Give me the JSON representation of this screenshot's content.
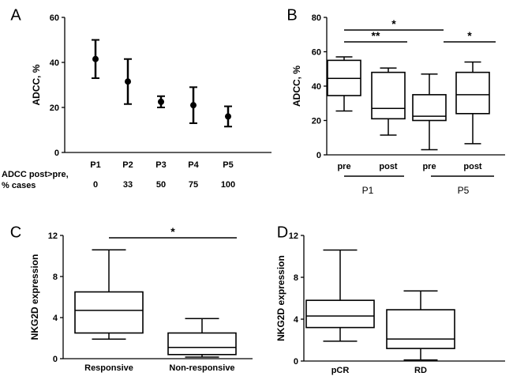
{
  "chart_data": [
    {
      "id": "A",
      "panel_label": "A",
      "type": "errorbar",
      "ylabel": "ADCC, %",
      "ylim": [
        0,
        60
      ],
      "yticks": [
        "0",
        "20",
        "40",
        "60"
      ],
      "categories": [
        "P1",
        "P2",
        "P3",
        "P4",
        "P5"
      ],
      "mean": [
        41.5,
        31.5,
        22.5,
        21,
        16
      ],
      "err_low": [
        33,
        21.5,
        20,
        13,
        11.5
      ],
      "err_high": [
        50,
        41.5,
        25,
        29,
        20.5
      ],
      "table_label": [
        "ADCC post>pre,",
        "% cases"
      ],
      "table_values": [
        "0",
        "33",
        "50",
        "75",
        "100"
      ]
    },
    {
      "id": "B",
      "panel_label": "B",
      "type": "box",
      "ylabel": "ADCC, %",
      "ylim": [
        0,
        80
      ],
      "yticks": [
        "0",
        "20",
        "40",
        "60",
        "80"
      ],
      "categories": [
        "pre",
        "post",
        "pre",
        "post"
      ],
      "groups": [
        "P1",
        "P5"
      ],
      "boxes": [
        {
          "min": 25.5,
          "q1": 34.5,
          "median": 44.5,
          "q3": 55,
          "max": 57
        },
        {
          "min": 11.5,
          "q1": 21,
          "median": 27,
          "q3": 48,
          "max": 50.5
        },
        {
          "min": 3,
          "q1": 20,
          "median": 22.5,
          "q3": 35,
          "max": 47
        },
        {
          "min": 6.5,
          "q1": 24,
          "median": 35,
          "q3": 48,
          "max": 54
        }
      ],
      "significance": [
        {
          "from": 0,
          "to": 2,
          "label": "*"
        },
        {
          "from": 0,
          "to": 1,
          "label": "**"
        },
        {
          "from": 2,
          "to": 3,
          "label": "*"
        }
      ]
    },
    {
      "id": "C",
      "panel_label": "C",
      "type": "box",
      "ylabel": "NKG2D expression",
      "ylim": [
        0,
        12
      ],
      "yticks": [
        "0",
        "4",
        "8",
        "12"
      ],
      "categories": [
        "Responsive",
        "Non-responsive"
      ],
      "boxes": [
        {
          "min": 1.9,
          "q1": 2.5,
          "median": 4.7,
          "q3": 6.5,
          "max": 10.6
        },
        {
          "min": 0.15,
          "q1": 0.4,
          "median": 1.1,
          "q3": 2.5,
          "max": 3.9
        }
      ],
      "significance": [
        {
          "from": 0,
          "to": 1,
          "label": "*"
        }
      ]
    },
    {
      "id": "D",
      "panel_label": "D",
      "type": "box",
      "ylabel": "NKG2D expression",
      "ylim": [
        0,
        12
      ],
      "yticks": [
        "0",
        "4",
        "8",
        "12"
      ],
      "categories": [
        "pCR",
        "RD"
      ],
      "boxes": [
        {
          "min": 1.9,
          "q1": 3.2,
          "median": 4.3,
          "q3": 5.8,
          "max": 10.6
        },
        {
          "min": 0.1,
          "q1": 1.2,
          "median": 2.1,
          "q3": 4.9,
          "max": 6.7
        }
      ]
    }
  ]
}
